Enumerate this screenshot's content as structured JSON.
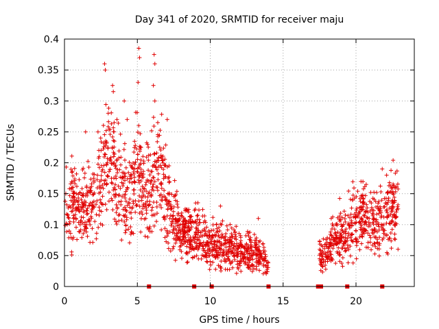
{
  "chart_data": {
    "type": "scatter",
    "title": "Day 341 of 2020, SRMTID for receiver maju",
    "xlabel": "GPS time / hours",
    "ylabel": "SRMTID / TECUs",
    "xlim": [
      0,
      24
    ],
    "ylim": [
      0,
      0.4
    ],
    "x_ticks": [
      0,
      5,
      10,
      15,
      20
    ],
    "x_tick_labels": [
      "0",
      "5",
      "10",
      "15",
      "20"
    ],
    "y_ticks": [
      0,
      0.05,
      0.1,
      0.15,
      0.2,
      0.25,
      0.3,
      0.35,
      0.4
    ],
    "y_tick_labels": [
      "0",
      "0.05",
      "0.1",
      "0.15",
      "0.2",
      "0.25",
      "0.3",
      "0.35",
      "0.4"
    ],
    "grid": true,
    "marker": "plus",
    "color": "#e00000",
    "baseline_markers_x": [
      5.8,
      8.9,
      10.1,
      14.0,
      17.4,
      17.6,
      19.4,
      21.8
    ],
    "trend": [
      [
        0.0,
        0.12
      ],
      [
        0.5,
        0.14
      ],
      [
        1.0,
        0.12
      ],
      [
        1.5,
        0.13
      ],
      [
        2.0,
        0.15
      ],
      [
        2.5,
        0.17
      ],
      [
        3.0,
        0.21
      ],
      [
        3.5,
        0.19
      ],
      [
        4.0,
        0.15
      ],
      [
        4.5,
        0.14
      ],
      [
        5.0,
        0.2
      ],
      [
        5.5,
        0.15
      ],
      [
        6.0,
        0.17
      ],
      [
        6.5,
        0.2
      ],
      [
        7.0,
        0.14
      ],
      [
        7.5,
        0.11
      ],
      [
        8.0,
        0.08
      ],
      [
        8.5,
        0.09
      ],
      [
        9.0,
        0.09
      ],
      [
        9.5,
        0.08
      ],
      [
        10.0,
        0.07
      ],
      [
        10.5,
        0.07
      ],
      [
        11.0,
        0.06
      ],
      [
        11.5,
        0.06
      ],
      [
        12.0,
        0.06
      ],
      [
        12.5,
        0.05
      ],
      [
        13.0,
        0.06
      ],
      [
        13.5,
        0.05
      ],
      [
        14.0,
        0.03
      ],
      [
        17.5,
        0.05
      ],
      [
        18.0,
        0.06
      ],
      [
        18.5,
        0.08
      ],
      [
        19.5,
        0.09
      ],
      [
        20.0,
        0.11
      ],
      [
        20.5,
        0.11
      ],
      [
        21.0,
        0.1
      ],
      [
        21.5,
        0.1
      ],
      [
        22.0,
        0.11
      ],
      [
        22.5,
        0.13
      ],
      [
        22.9,
        0.13
      ]
    ],
    "peaks": [
      [
        2.75,
        0.36
      ],
      [
        2.8,
        0.35
      ],
      [
        3.3,
        0.325
      ],
      [
        3.35,
        0.315
      ],
      [
        4.1,
        0.3
      ],
      [
        5.1,
        0.385
      ],
      [
        5.15,
        0.37
      ],
      [
        5.05,
        0.33
      ],
      [
        6.15,
        0.375
      ],
      [
        6.2,
        0.36
      ],
      [
        6.1,
        0.325
      ],
      [
        6.2,
        0.3
      ],
      [
        6.4,
        0.265
      ],
      [
        7.05,
        0.27
      ],
      [
        1.45,
        0.25
      ],
      [
        2.3,
        0.25
      ],
      [
        3.0,
        0.28
      ],
      [
        3.6,
        0.27
      ],
      [
        4.3,
        0.27
      ],
      [
        9.0,
        0.135
      ],
      [
        10.7,
        0.13
      ],
      [
        13.3,
        0.11
      ],
      [
        18.3,
        0.11
      ],
      [
        21.8,
        0.19
      ],
      [
        22.1,
        0.18
      ],
      [
        20.7,
        0.165
      ],
      [
        22.5,
        0.16
      ]
    ],
    "gaps_hours": [
      [
        14.1,
        17.3
      ]
    ]
  }
}
